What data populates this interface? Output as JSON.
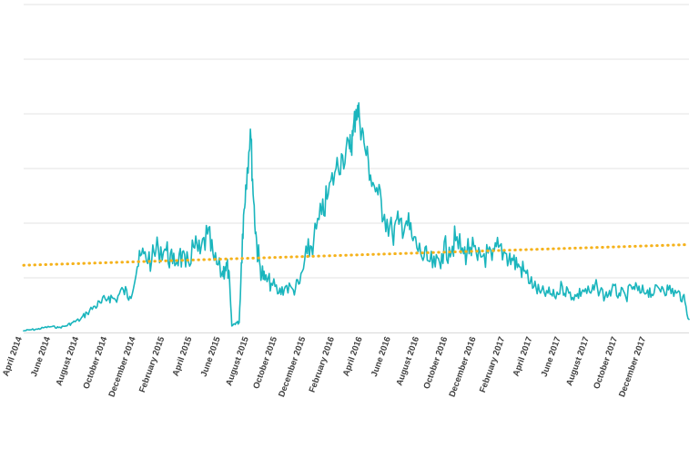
{
  "chart_data": {
    "type": "line",
    "title": "",
    "xlabel": "",
    "ylabel": "",
    "y_tick_labels_visible": false,
    "grid": "horizontal",
    "legend": "none",
    "x_range": [
      "2014-04-01",
      "2018-02-28"
    ],
    "ylim": [
      0,
      100
    ],
    "x_tick_labels": [
      {
        "date": "2014-04-01",
        "label": "April 2014"
      },
      {
        "date": "2014-06-01",
        "label": "June 2014"
      },
      {
        "date": "2014-08-01",
        "label": "August 2014"
      },
      {
        "date": "2014-10-01",
        "label": "October 2014"
      },
      {
        "date": "2014-12-01",
        "label": "December 2014"
      },
      {
        "date": "2015-02-01",
        "label": "February 2015"
      },
      {
        "date": "2015-04-01",
        "label": "April 2015"
      },
      {
        "date": "2015-06-01",
        "label": "June 2015"
      },
      {
        "date": "2015-08-01",
        "label": "August 2015"
      },
      {
        "date": "2015-10-01",
        "label": "October 2015"
      },
      {
        "date": "2015-12-01",
        "label": "December 2015"
      },
      {
        "date": "2016-02-01",
        "label": "February 2016"
      },
      {
        "date": "2016-04-01",
        "label": "April 2016"
      },
      {
        "date": "2016-06-01",
        "label": "June 2016"
      },
      {
        "date": "2016-08-01",
        "label": "August 2016"
      },
      {
        "date": "2016-10-01",
        "label": "October 2016"
      },
      {
        "date": "2016-12-01",
        "label": "December 2016"
      },
      {
        "date": "2017-02-01",
        "label": "February 2017"
      },
      {
        "date": "2017-04-01",
        "label": "April 2017"
      },
      {
        "date": "2017-06-01",
        "label": "June 2017"
      },
      {
        "date": "2017-08-01",
        "label": "August 2017"
      },
      {
        "date": "2017-10-01",
        "label": "October 2017"
      },
      {
        "date": "2017-12-01",
        "label": "December 2017"
      }
    ],
    "series": [
      {
        "role": "data",
        "style": "solid",
        "color": "#1ab5bd",
        "x": [
          "2014-04-01",
          "2014-04-15",
          "2014-05-01",
          "2014-05-15",
          "2014-06-01",
          "2014-06-15",
          "2014-07-01",
          "2014-07-15",
          "2014-08-01",
          "2014-08-15",
          "2014-09-01",
          "2014-09-15",
          "2014-10-01",
          "2014-10-15",
          "2014-11-01",
          "2014-11-15",
          "2014-12-01",
          "2014-12-15",
          "2015-01-01",
          "2015-01-15",
          "2015-02-01",
          "2015-02-15",
          "2015-03-01",
          "2015-03-15",
          "2015-04-01",
          "2015-04-15",
          "2015-05-01",
          "2015-05-15",
          "2015-06-01",
          "2015-06-08",
          "2015-06-15",
          "2015-06-22",
          "2015-07-01",
          "2015-07-08",
          "2015-07-15",
          "2015-07-22",
          "2015-08-01",
          "2015-08-08",
          "2015-08-15",
          "2015-08-22",
          "2015-09-01",
          "2015-09-15",
          "2015-10-01",
          "2015-10-15",
          "2015-11-01",
          "2015-11-15",
          "2015-12-01",
          "2015-12-15",
          "2016-01-01",
          "2016-01-15",
          "2016-02-01",
          "2016-02-15",
          "2016-03-01",
          "2016-03-08",
          "2016-03-15",
          "2016-03-22",
          "2016-04-01",
          "2016-04-15",
          "2016-05-01",
          "2016-05-15",
          "2016-06-01",
          "2016-06-15",
          "2016-07-01",
          "2016-07-15",
          "2016-08-01",
          "2016-08-15",
          "2016-09-01",
          "2016-09-15",
          "2016-10-01",
          "2016-10-15",
          "2016-11-01",
          "2016-11-15",
          "2016-12-01",
          "2016-12-15",
          "2017-01-01",
          "2017-01-15",
          "2017-02-01",
          "2017-02-15",
          "2017-03-01",
          "2017-03-15",
          "2017-04-01",
          "2017-04-15",
          "2017-05-01",
          "2017-05-15",
          "2017-06-01",
          "2017-06-15",
          "2017-07-01",
          "2017-07-15",
          "2017-08-01",
          "2017-08-15",
          "2017-09-01",
          "2017-09-15",
          "2017-10-01",
          "2017-10-15",
          "2017-11-01",
          "2017-11-15",
          "2017-12-01",
          "2017-12-15",
          "2018-01-01",
          "2018-01-15",
          "2018-02-01",
          "2018-02-15",
          "2018-02-28"
        ],
        "y": [
          0.5,
          0.8,
          1,
          1.5,
          1.8,
          1.5,
          2,
          3,
          4,
          6,
          8,
          9,
          11,
          10,
          13,
          11,
          20,
          24,
          22,
          26,
          25,
          21,
          24,
          20,
          26,
          24,
          30,
          22,
          18,
          20,
          19,
          2,
          3,
          3,
          30,
          45,
          62,
          40,
          26,
          20,
          16,
          15,
          12,
          14,
          13,
          15,
          24,
          28,
          36,
          42,
          50,
          54,
          56,
          60,
          68,
          66,
          58,
          48,
          42,
          36,
          30,
          33,
          34,
          28,
          24,
          22,
          20,
          24,
          26,
          28,
          24,
          26,
          22,
          24,
          22,
          26,
          24,
          22,
          20,
          18,
          14,
          12,
          12,
          11,
          14,
          12,
          11,
          13,
          12,
          14,
          11,
          13,
          12,
          11,
          14,
          12,
          13,
          12,
          14,
          13,
          12,
          11,
          4
        ]
      },
      {
        "role": "linear trendline",
        "style": "dotted",
        "color": "#f5b21b",
        "x": [
          "2014-04-01",
          "2018-02-28"
        ],
        "y": [
          20.5,
          26.8
        ]
      }
    ]
  }
}
